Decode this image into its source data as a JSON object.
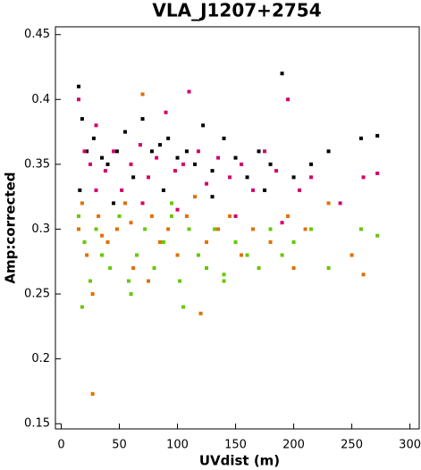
{
  "chart_data": {
    "type": "scatter",
    "title": "VLA_J1207+2754",
    "x_label": "UVdist (m)",
    "y_label": "Amp:corrected",
    "xlim": [
      -5,
      308
    ],
    "ylim": [
      0.146,
      0.456
    ],
    "xticks": [
      0,
      50,
      100,
      150,
      200,
      250,
      300
    ],
    "yticks": [
      0.15,
      0.2,
      0.25,
      0.3,
      0.35,
      0.4,
      0.45
    ],
    "series": [
      {
        "color": "#000000",
        "x": [
          15,
          18,
          22,
          28,
          35,
          40,
          48,
          55,
          62,
          70,
          78,
          85,
          92,
          100,
          108,
          115,
          122,
          130,
          140,
          150,
          160,
          170,
          180,
          190,
          200,
          215,
          230,
          258,
          272,
          16,
          45,
          88,
          130,
          175
        ],
        "values": [
          0.41,
          0.385,
          0.36,
          0.37,
          0.355,
          0.35,
          0.36,
          0.375,
          0.34,
          0.385,
          0.36,
          0.365,
          0.37,
          0.355,
          0.36,
          0.35,
          0.38,
          0.345,
          0.37,
          0.355,
          0.34,
          0.36,
          0.35,
          0.42,
          0.34,
          0.35,
          0.36,
          0.37,
          0.372,
          0.33,
          0.32,
          0.33,
          0.325,
          0.33
        ]
      },
      {
        "color": "#d4006a",
        "x": [
          15,
          20,
          25,
          30,
          38,
          45,
          52,
          60,
          68,
          75,
          82,
          90,
          98,
          105,
          110,
          118,
          125,
          135,
          145,
          155,
          165,
          175,
          185,
          195,
          205,
          215,
          240,
          260,
          272,
          30,
          70,
          100,
          150,
          190
        ],
        "values": [
          0.4,
          0.36,
          0.35,
          0.38,
          0.345,
          0.36,
          0.33,
          0.35,
          0.365,
          0.34,
          0.355,
          0.39,
          0.345,
          0.35,
          0.406,
          0.36,
          0.335,
          0.355,
          0.34,
          0.35,
          0.33,
          0.36,
          0.345,
          0.4,
          0.33,
          0.34,
          0.32,
          0.34,
          0.343,
          0.33,
          0.32,
          0.315,
          0.31,
          0.305
        ]
      },
      {
        "color": "#e07000",
        "x": [
          15,
          18,
          22,
          27,
          32,
          40,
          48,
          55,
          62,
          70,
          78,
          85,
          92,
          100,
          108,
          115,
          125,
          135,
          145,
          155,
          165,
          180,
          195,
          210,
          230,
          250,
          260,
          27,
          75,
          120,
          60,
          35,
          200
        ],
        "values": [
          0.3,
          0.32,
          0.28,
          0.173,
          0.31,
          0.29,
          0.3,
          0.32,
          0.27,
          0.404,
          0.31,
          0.29,
          0.3,
          0.28,
          0.31,
          0.325,
          0.29,
          0.3,
          0.31,
          0.28,
          0.3,
          0.29,
          0.31,
          0.3,
          0.32,
          0.28,
          0.265,
          0.25,
          0.26,
          0.235,
          0.305,
          0.295,
          0.27
        ]
      },
      {
        "color": "#66c800",
        "x": [
          15,
          20,
          25,
          30,
          35,
          42,
          50,
          58,
          65,
          72,
          80,
          88,
          95,
          102,
          110,
          118,
          125,
          132,
          140,
          150,
          160,
          170,
          180,
          190,
          200,
          215,
          230,
          258,
          272,
          18,
          60,
          105,
          140,
          95
        ],
        "values": [
          0.31,
          0.29,
          0.26,
          0.3,
          0.28,
          0.27,
          0.31,
          0.26,
          0.28,
          0.3,
          0.27,
          0.29,
          0.32,
          0.26,
          0.3,
          0.28,
          0.27,
          0.3,
          0.26,
          0.29,
          0.28,
          0.27,
          0.3,
          0.28,
          0.29,
          0.3,
          0.27,
          0.3,
          0.295,
          0.24,
          0.25,
          0.24,
          0.265,
          0.31
        ]
      }
    ]
  }
}
